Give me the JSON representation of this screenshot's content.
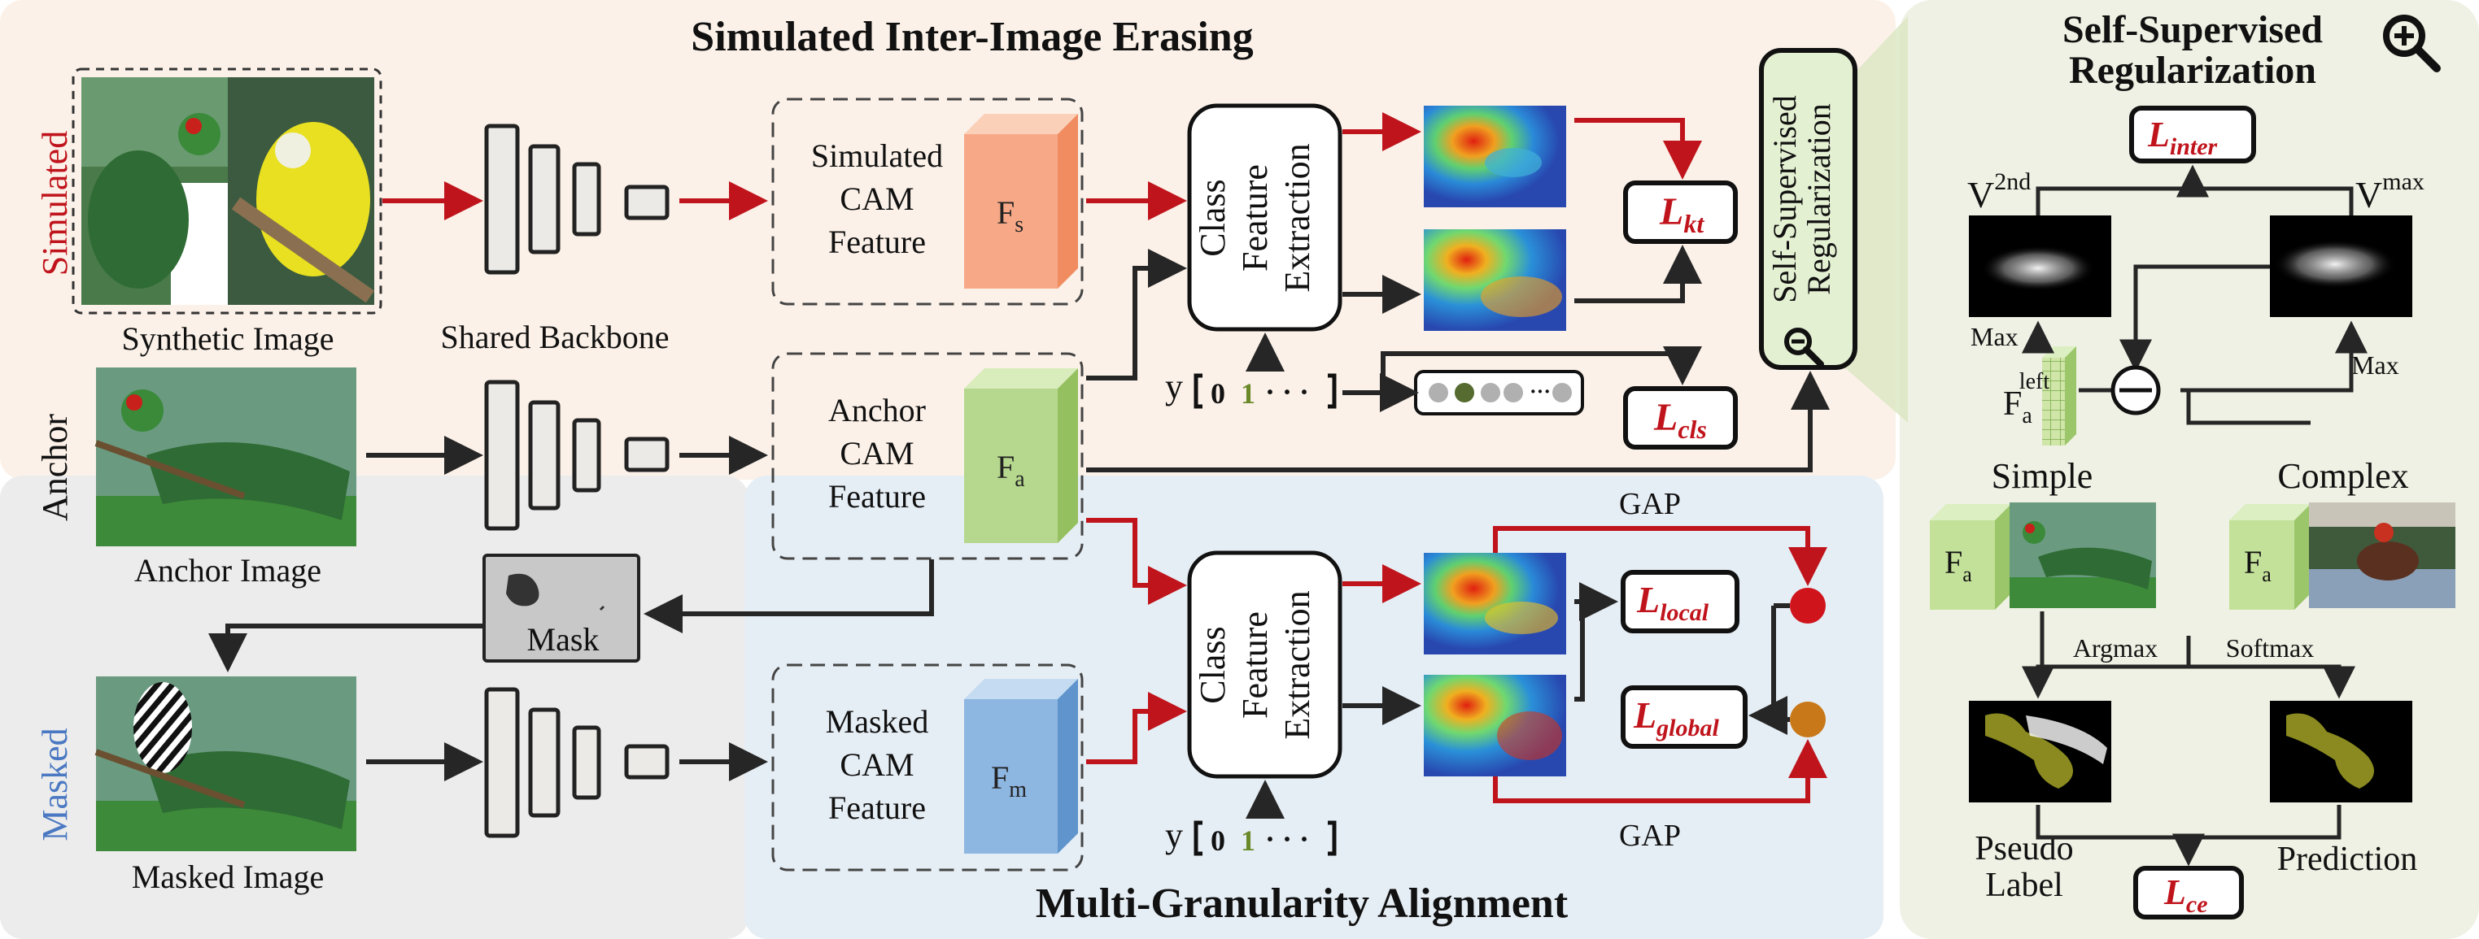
{
  "titles": {
    "top": "Simulated Inter-Image Erasing",
    "bottom": "Multi-Granularity  Alignment",
    "right_line1": "Self-Supervised",
    "right_line2": "Regularization"
  },
  "side_labels": {
    "simulated": "Simulated",
    "anchor": "Anchor",
    "masked": "Masked"
  },
  "captions": {
    "synthetic": "Synthetic Image",
    "backbone": "Shared Backbone",
    "anchor_image": "Anchor Image",
    "masked_image": "Masked Image",
    "mask": "Mask"
  },
  "features": {
    "simulated": {
      "line1": "Simulated",
      "line2": "CAM",
      "line3": "Feature",
      "symbol": "F",
      "sub": "s"
    },
    "anchor": {
      "line1": "Anchor",
      "line2": "CAM",
      "line3": "Feature",
      "symbol": "F",
      "sub": "a"
    },
    "masked": {
      "line1": "Masked",
      "line2": "CAM",
      "line3": "Feature",
      "symbol": "F",
      "sub": "m"
    }
  },
  "cfe": {
    "line1": "Class",
    "line2": "Feature",
    "line3": "Extraction"
  },
  "label_vector": {
    "prefix": "y",
    "v0": "0",
    "v1": "1",
    "dots": "· · ·"
  },
  "losses": {
    "kt": {
      "L": "L",
      "sub": "kt"
    },
    "cls": {
      "L": "L",
      "sub": "cls"
    },
    "local": {
      "L": "L",
      "sub": "local"
    },
    "global": {
      "L": "L",
      "sub": "global"
    },
    "inter": {
      "L": "L",
      "sub": "inter"
    },
    "ce": {
      "L": "L",
      "sub": "ce"
    }
  },
  "gap": {
    "top": "GAP",
    "bottom": "GAP"
  },
  "ssr_box": {
    "line1": "Self-Supervised",
    "line2": "Regularization"
  },
  "right_panel": {
    "v2nd": {
      "base": "V",
      "sup": "2nd"
    },
    "vmax": {
      "base": "V",
      "sup": "max"
    },
    "max_left": "Max",
    "max_right": "Max",
    "fa_left": {
      "base": "F",
      "sub": "a",
      "sup": "left"
    },
    "simple": "Simple",
    "complex": "Complex",
    "fa_simple": {
      "base": "F",
      "sub": "a"
    },
    "fa_complex": {
      "base": "F",
      "sub": "a"
    },
    "argmax": "Argmax",
    "softmax": "Softmax",
    "pseudo_line1": "Pseudo",
    "pseudo_line2": "Label",
    "prediction": "Prediction"
  },
  "colors": {
    "red_arrow": "#c0141c",
    "dark_arrow": "#262626",
    "simulated_cube": "#f7a987",
    "anchor_cube": "#b6d88e",
    "masked_cube": "#8db6e0",
    "top_band": "#fbf1e8",
    "bottom_gray": "#ececec",
    "bottom_blue": "#e6eef5",
    "right_panel": "#eef1e3",
    "simulated_text": "#c0141c",
    "masked_text": "#4a78c2",
    "loss_text": "#c0141c",
    "dot_red": "#d0141c",
    "dot_orange": "#c87818"
  },
  "icons": [
    "magnifier-icon",
    "magnifier-small-icon",
    "minus-circle-icon",
    "bird-thumbnail-icon"
  ]
}
